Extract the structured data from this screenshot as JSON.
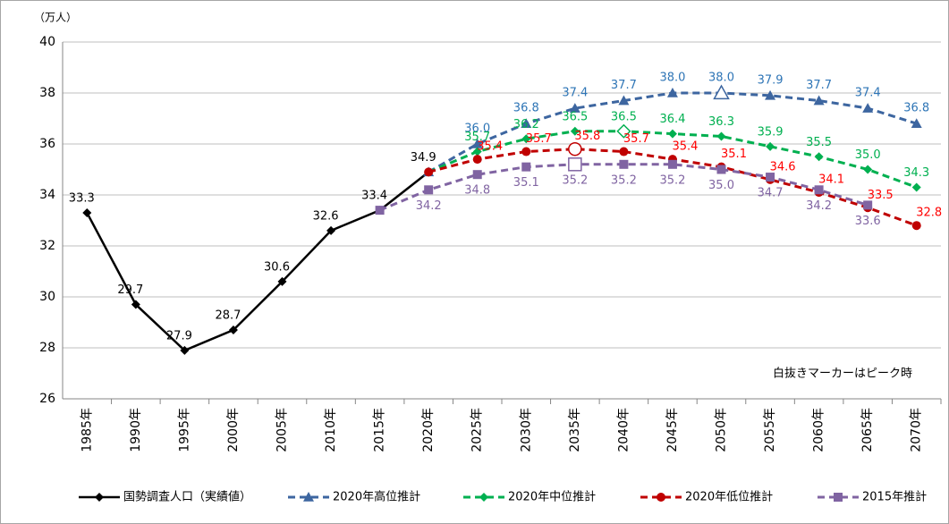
{
  "chart_data": {
    "type": "line",
    "y_unit_label": "（万人）",
    "annotation": "白抜きマーカーはピーク時",
    "categories": [
      "1985年",
      "1990年",
      "1995年",
      "2000年",
      "2005年",
      "2010年",
      "2015年",
      "2020年",
      "2025年",
      "2030年",
      "2035年",
      "2040年",
      "2045年",
      "2050年",
      "2055年",
      "2060年",
      "2065年",
      "2070年"
    ],
    "ylim": [
      26,
      40
    ],
    "yticks": [
      26,
      28,
      30,
      32,
      34,
      36,
      38,
      40
    ],
    "grid": true,
    "legend": "bottom",
    "series": [
      {
        "name": "国勢調査人口（実績値）",
        "color": "#000000",
        "label_color": "#000000",
        "marker": "diamond",
        "dashed": false,
        "values": [
          33.3,
          29.7,
          27.9,
          28.7,
          30.6,
          32.6,
          33.4,
          34.9,
          null,
          null,
          null,
          null,
          null,
          null,
          null,
          null,
          null,
          null
        ],
        "value_labels": [
          "33.3",
          "29.7",
          "27.9",
          "28.7",
          "30.6",
          "32.6",
          "33.4",
          "34.9",
          null,
          null,
          null,
          null,
          null,
          null,
          null,
          null,
          null,
          null
        ]
      },
      {
        "name": "2020年高位推計",
        "color": "#3d66a0",
        "label_color": "#2e75b6",
        "marker": "triangle",
        "dashed": true,
        "hollow_marker_index": 13,
        "values": [
          null,
          null,
          null,
          null,
          null,
          null,
          null,
          34.9,
          36.0,
          36.8,
          37.4,
          37.7,
          38.0,
          38.0,
          37.9,
          37.7,
          37.4,
          36.8
        ],
        "value_labels": [
          null,
          null,
          null,
          null,
          null,
          null,
          null,
          null,
          "36.0",
          "36.8",
          "37.4",
          "37.7",
          "38.0",
          "38.0",
          "37.9",
          "37.7",
          "37.4",
          "36.8"
        ]
      },
      {
        "name": "2020年中位推計",
        "color": "#00b050",
        "label_color": "#00b050",
        "marker": "diamond",
        "dashed": true,
        "hollow_marker_index": 11,
        "values": [
          null,
          null,
          null,
          null,
          null,
          null,
          null,
          34.9,
          35.7,
          36.2,
          36.5,
          36.5,
          36.4,
          36.3,
          35.9,
          35.5,
          35.0,
          34.3
        ],
        "value_labels": [
          null,
          null,
          null,
          null,
          null,
          null,
          null,
          null,
          "35.7",
          "36.2",
          "36.5",
          "36.5",
          "36.4",
          "36.3",
          "35.9",
          "35.5",
          "35.0",
          "34.3"
        ]
      },
      {
        "name": "2020年低位推計",
        "color": "#c00000",
        "label_color": "#ff0000",
        "marker": "circle",
        "dashed": true,
        "hollow_marker_index": 10,
        "values": [
          null,
          null,
          null,
          null,
          null,
          null,
          null,
          34.9,
          35.4,
          35.7,
          35.8,
          35.7,
          35.4,
          35.1,
          34.6,
          34.1,
          33.5,
          32.8
        ],
        "value_labels": [
          null,
          null,
          null,
          null,
          null,
          null,
          null,
          null,
          "35.4",
          "35.7",
          "35.8",
          "35.7",
          "35.4",
          "35.1",
          "34.6",
          "34.1",
          "33.5",
          "32.8"
        ]
      },
      {
        "name": "2015年推計",
        "color": "#8064a2",
        "label_color": "#8064a2",
        "marker": "square",
        "dashed": true,
        "hollow_marker_index": 10,
        "values": [
          null,
          null,
          null,
          null,
          null,
          null,
          33.4,
          34.2,
          34.8,
          35.1,
          35.2,
          35.2,
          35.2,
          35.0,
          34.7,
          34.2,
          33.6,
          null
        ],
        "value_labels": [
          null,
          null,
          null,
          null,
          null,
          null,
          null,
          "34.2",
          "34.8",
          "35.1",
          "35.2",
          "35.2",
          "35.2",
          "35.0",
          "34.7",
          "34.2",
          "33.6",
          null
        ]
      }
    ]
  }
}
